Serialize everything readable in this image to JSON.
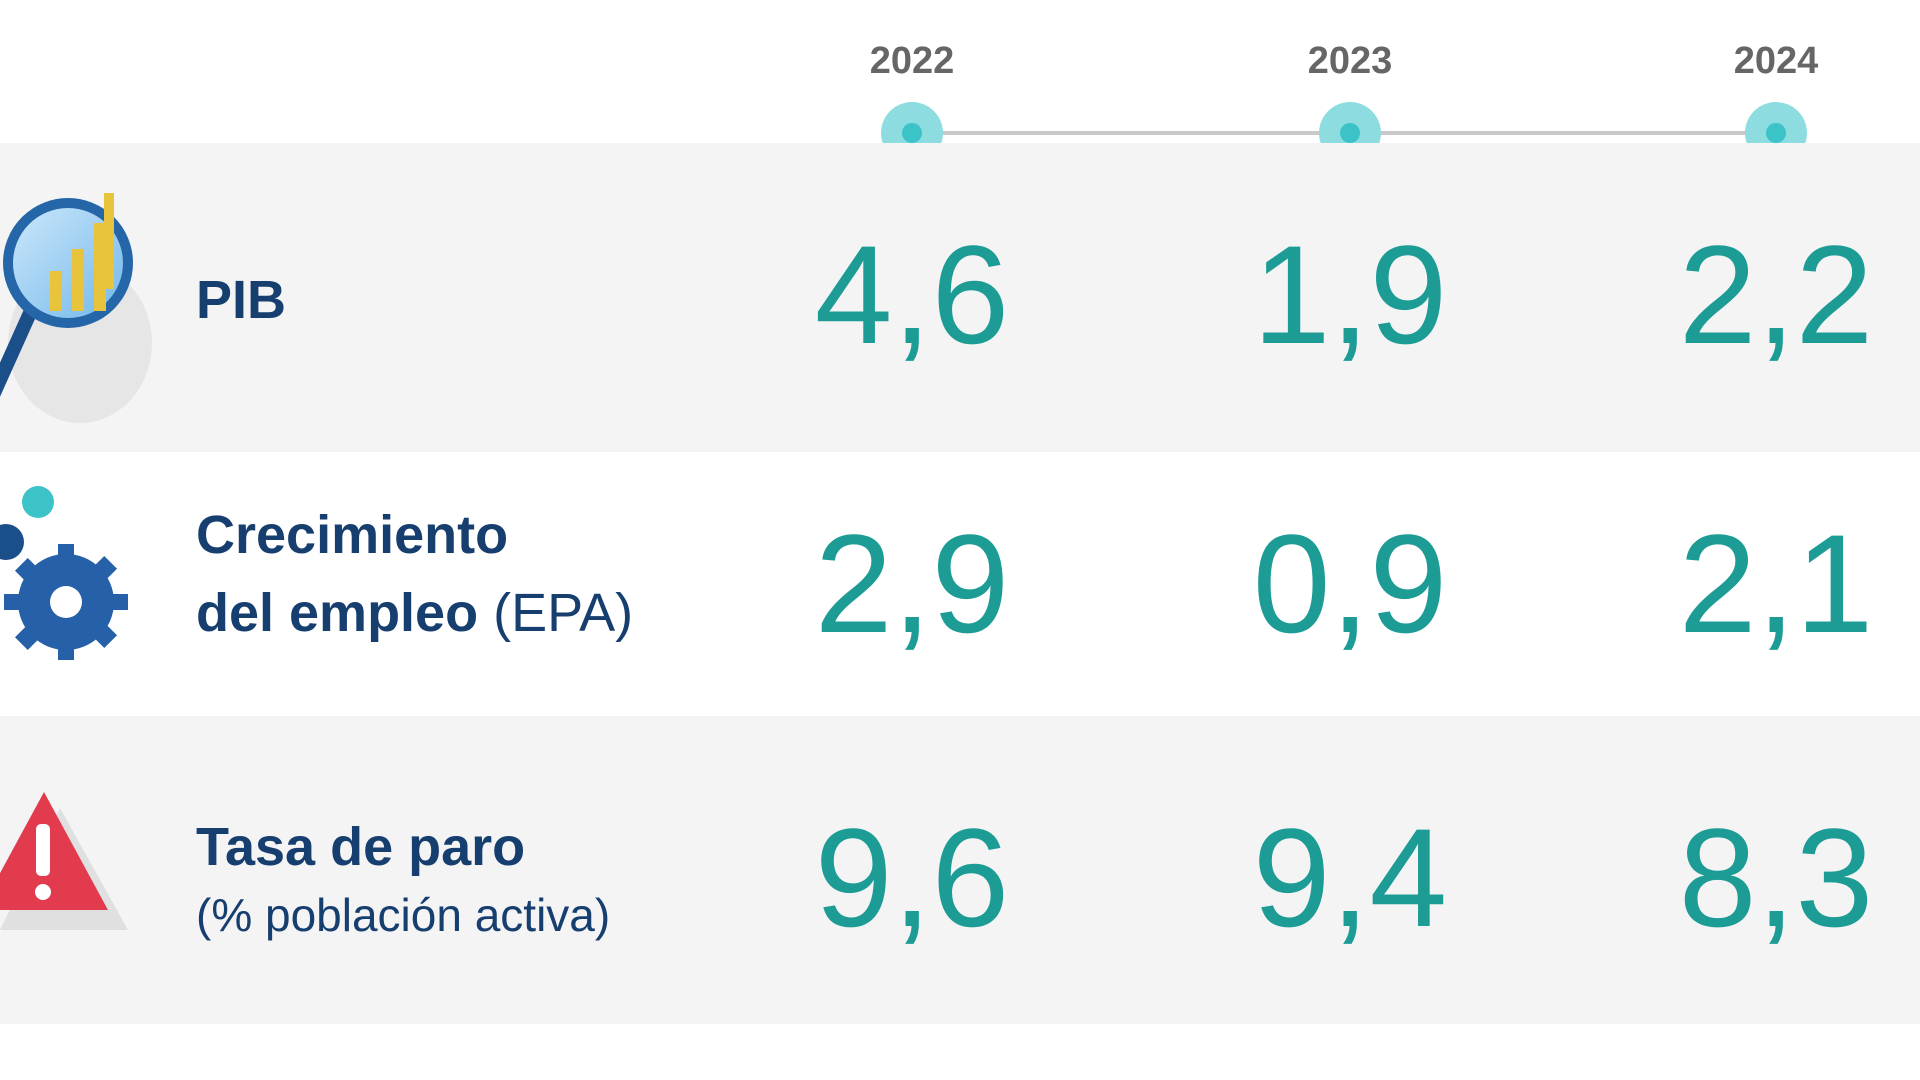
{
  "chart_data": {
    "type": "table",
    "years": [
      "2022",
      "2023",
      "2024"
    ],
    "rows": [
      {
        "key": "pib",
        "label": "PIB",
        "label_suffix": "",
        "sublabel": "",
        "icon": "magnifier-chart-icon",
        "values": [
          "4,6",
          "1,9",
          "2,2"
        ]
      },
      {
        "key": "empleo",
        "label_line1": "Crecimiento",
        "label_line2": "del empleo",
        "label_suffix": "(EPA)",
        "icon": "gears-icon",
        "values": [
          "2,9",
          "0,9",
          "2,1"
        ]
      },
      {
        "key": "paro",
        "label": "Tasa de paro",
        "sublabel": "(% población activa)",
        "icon": "warning-triangle-icon",
        "values": [
          "9,6",
          "9,4",
          "8,3"
        ]
      }
    ]
  },
  "colors": {
    "value": "#1c9c95",
    "label": "#163e6e",
    "year": "#666666",
    "timeline_dot": "#3cc3c8",
    "row_shade": "#f4f4f5",
    "warning": "#e23b4e"
  }
}
